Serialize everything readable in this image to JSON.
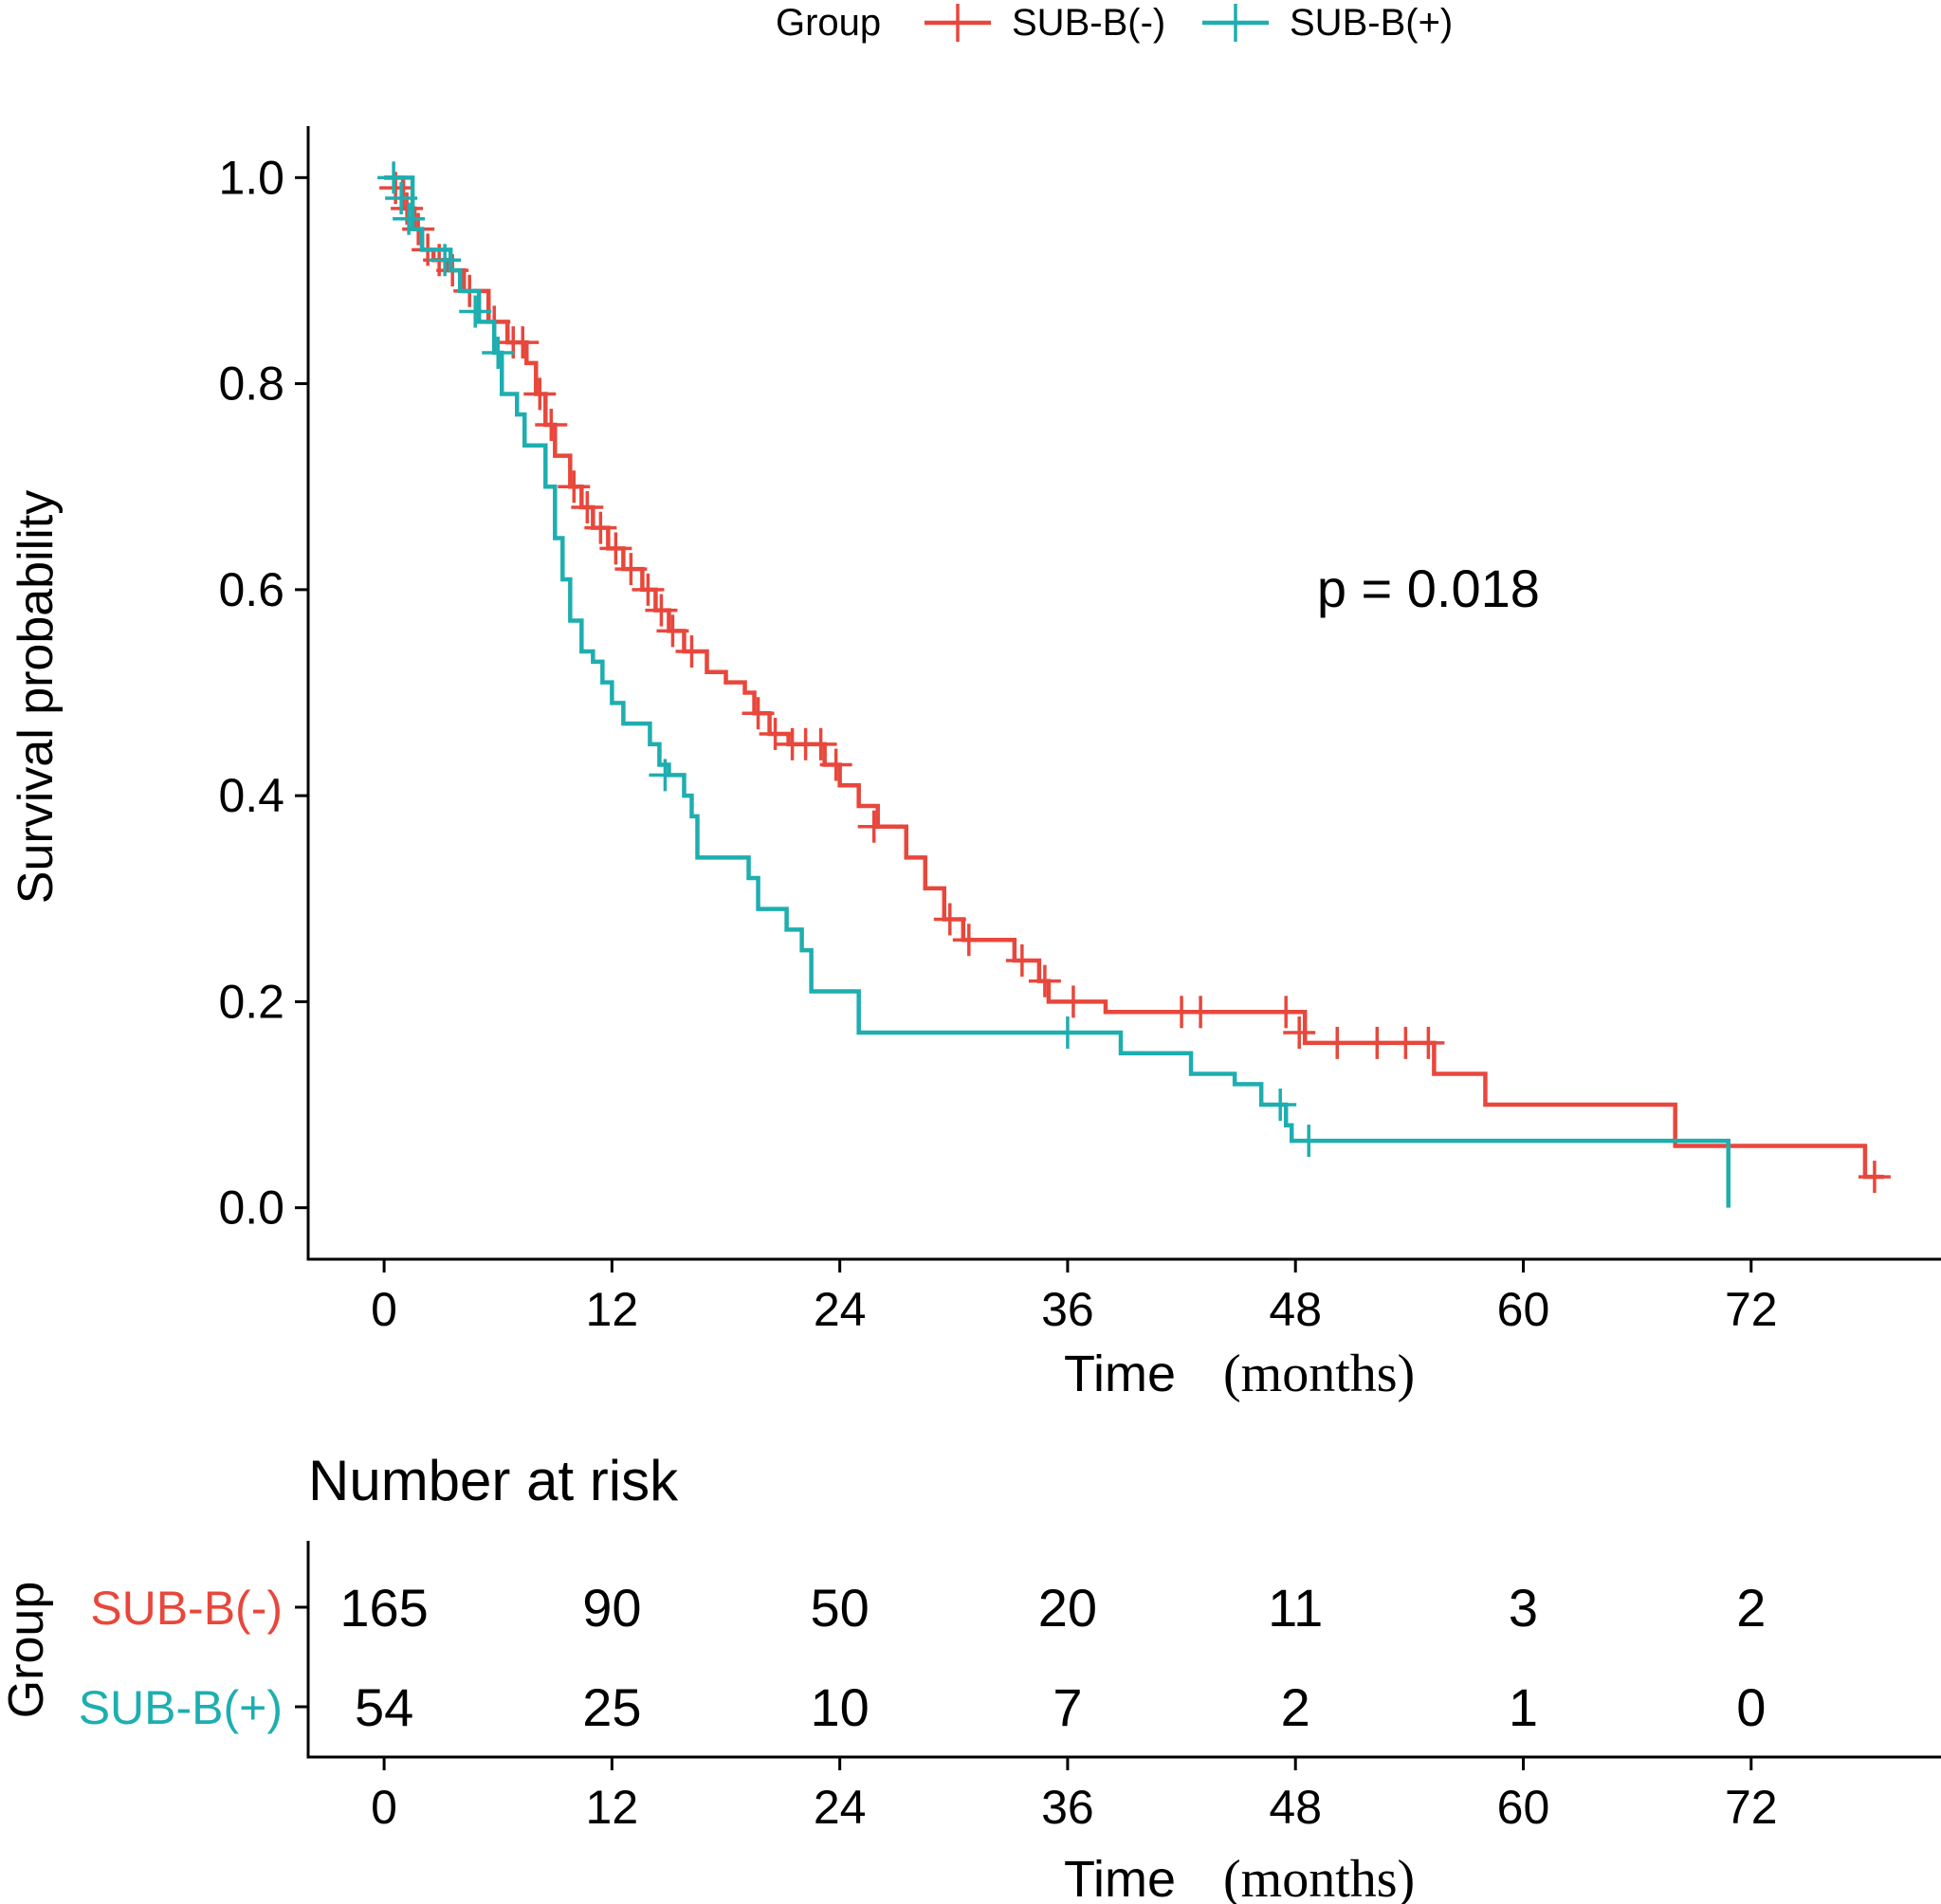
{
  "chart_data": {
    "type": "line",
    "subtype": "kaplan-meier",
    "legend": {
      "title": "Group",
      "position": "top",
      "entries": [
        {
          "name": "SUB-B(-)",
          "color": "#E8473C"
        },
        {
          "name": "SUB-B(+)",
          "color": "#1EAEB0"
        }
      ]
    },
    "xlabel_main": "Time",
    "xlabel_unit": "(months)",
    "ylabel": "Survival probability",
    "xlim": [
      -4,
      82
    ],
    "ylim": [
      -0.05,
      1.05
    ],
    "xticks": [
      0,
      12,
      24,
      36,
      48,
      60,
      72
    ],
    "xtick_labels": [
      "0",
      "12",
      "24",
      "36",
      "48",
      "60",
      "72"
    ],
    "yticks": [
      0.0,
      0.2,
      0.4,
      0.6,
      0.8,
      1.0
    ],
    "ytick_labels": [
      "0.0",
      "0.2",
      "0.4",
      "0.6",
      "0.8",
      "1.0"
    ],
    "annotation": "p = 0.018",
    "annotation_at": {
      "x": 55,
      "y": 0.6
    },
    "series": [
      {
        "name": "SUB-B(-)",
        "color": "#E8473C",
        "steps": [
          [
            0,
            1.0
          ],
          [
            1.0,
            0.97
          ],
          [
            1.6,
            0.95
          ],
          [
            2.0,
            0.93
          ],
          [
            2.6,
            0.92
          ],
          [
            3.3,
            0.91
          ],
          [
            4.2,
            0.89
          ],
          [
            5.5,
            0.86
          ],
          [
            6.5,
            0.84
          ],
          [
            7.5,
            0.82
          ],
          [
            8.0,
            0.79
          ],
          [
            8.5,
            0.76
          ],
          [
            9.0,
            0.73
          ],
          [
            9.8,
            0.7
          ],
          [
            10.4,
            0.68
          ],
          [
            11.0,
            0.66
          ],
          [
            11.8,
            0.64
          ],
          [
            12.6,
            0.62
          ],
          [
            13.6,
            0.6
          ],
          [
            14.3,
            0.58
          ],
          [
            15.0,
            0.56
          ],
          [
            15.8,
            0.54
          ],
          [
            17.0,
            0.52
          ],
          [
            18.0,
            0.51
          ],
          [
            19.0,
            0.5
          ],
          [
            19.5,
            0.48
          ],
          [
            20.3,
            0.46
          ],
          [
            21.3,
            0.45
          ],
          [
            23.2,
            0.43
          ],
          [
            24.0,
            0.41
          ],
          [
            25.0,
            0.39
          ],
          [
            26.0,
            0.37
          ],
          [
            27.5,
            0.34
          ],
          [
            28.5,
            0.31
          ],
          [
            29.5,
            0.28
          ],
          [
            30.5,
            0.26
          ],
          [
            33.2,
            0.24
          ],
          [
            34.5,
            0.22
          ],
          [
            35.0,
            0.2
          ],
          [
            38.0,
            0.19
          ],
          [
            48.5,
            0.16
          ],
          [
            55.3,
            0.13
          ],
          [
            58.0,
            0.1
          ],
          [
            68.0,
            0.06
          ],
          [
            78.0,
            0.03
          ]
        ],
        "end": 79,
        "censored": [
          [
            0.6,
            0.99
          ],
          [
            1.2,
            0.97
          ],
          [
            1.8,
            0.95
          ],
          [
            2.3,
            0.93
          ],
          [
            2.9,
            0.92
          ],
          [
            3.6,
            0.91
          ],
          [
            4.5,
            0.89
          ],
          [
            5.8,
            0.86
          ],
          [
            6.8,
            0.84
          ],
          [
            7.3,
            0.84
          ],
          [
            8.2,
            0.79
          ],
          [
            8.8,
            0.76
          ],
          [
            10.0,
            0.7
          ],
          [
            10.7,
            0.68
          ],
          [
            11.4,
            0.66
          ],
          [
            12.2,
            0.64
          ],
          [
            13.0,
            0.62
          ],
          [
            13.9,
            0.6
          ],
          [
            14.6,
            0.58
          ],
          [
            15.2,
            0.56
          ],
          [
            16.2,
            0.54
          ],
          [
            19.7,
            0.48
          ],
          [
            20.6,
            0.46
          ],
          [
            21.5,
            0.45
          ],
          [
            22.2,
            0.45
          ],
          [
            23.0,
            0.45
          ],
          [
            23.8,
            0.43
          ],
          [
            25.8,
            0.37
          ],
          [
            29.8,
            0.28
          ],
          [
            30.8,
            0.26
          ],
          [
            33.6,
            0.24
          ],
          [
            34.8,
            0.22
          ],
          [
            36.3,
            0.2
          ],
          [
            42.0,
            0.19
          ],
          [
            43.0,
            0.19
          ],
          [
            47.5,
            0.19
          ],
          [
            48.2,
            0.17
          ],
          [
            50.2,
            0.16
          ],
          [
            52.3,
            0.16
          ],
          [
            53.8,
            0.16
          ],
          [
            55.0,
            0.16
          ],
          [
            78.5,
            0.03
          ]
        ]
      },
      {
        "name": "SUB-B(+)",
        "color": "#1EAEB0",
        "steps": [
          [
            0,
            1.0
          ],
          [
            1.5,
            0.95
          ],
          [
            2.0,
            0.93
          ],
          [
            3.5,
            0.91
          ],
          [
            4.0,
            0.89
          ],
          [
            5.0,
            0.86
          ],
          [
            5.8,
            0.83
          ],
          [
            6.2,
            0.79
          ],
          [
            7.0,
            0.77
          ],
          [
            7.4,
            0.74
          ],
          [
            8.5,
            0.7
          ],
          [
            9.0,
            0.65
          ],
          [
            9.4,
            0.61
          ],
          [
            9.8,
            0.57
          ],
          [
            10.4,
            0.54
          ],
          [
            11.0,
            0.53
          ],
          [
            11.5,
            0.51
          ],
          [
            12.0,
            0.49
          ],
          [
            12.6,
            0.47
          ],
          [
            13.4,
            0.47
          ],
          [
            14.0,
            0.45
          ],
          [
            14.5,
            0.43
          ],
          [
            15.0,
            0.42
          ],
          [
            15.8,
            0.4
          ],
          [
            16.2,
            0.38
          ],
          [
            16.5,
            0.34
          ],
          [
            19.2,
            0.32
          ],
          [
            19.7,
            0.29
          ],
          [
            21.2,
            0.27
          ],
          [
            22.0,
            0.25
          ],
          [
            22.5,
            0.21
          ],
          [
            25.0,
            0.17
          ],
          [
            38.8,
            0.15
          ],
          [
            42.5,
            0.13
          ],
          [
            44.8,
            0.12
          ],
          [
            46.2,
            0.1
          ],
          [
            47.5,
            0.08
          ],
          [
            47.8,
            0.065
          ],
          [
            70.8,
            0.0
          ]
        ],
        "end": 70.8,
        "censored": [
          [
            0.5,
            1.0
          ],
          [
            0.9,
            0.98
          ],
          [
            1.3,
            0.96
          ],
          [
            3.2,
            0.92
          ],
          [
            4.8,
            0.87
          ],
          [
            6.0,
            0.83
          ],
          [
            14.8,
            0.42
          ],
          [
            36.0,
            0.17
          ],
          [
            47.2,
            0.1
          ],
          [
            48.7,
            0.065
          ]
        ]
      }
    ],
    "risk_table": {
      "title": "Number at risk",
      "row_axis_label": "Group",
      "times": [
        0,
        12,
        24,
        36,
        48,
        60,
        72
      ],
      "rows": [
        {
          "name": "SUB-B(-)",
          "color": "#E8473C",
          "values": [
            "165",
            "90",
            "50",
            "20",
            "11",
            "3",
            "2"
          ]
        },
        {
          "name": "SUB-B(+)",
          "color": "#1EAEB0",
          "values": [
            "54",
            "25",
            "10",
            "7",
            "2",
            "1",
            "0"
          ]
        }
      ],
      "xlabel_main": "Time",
      "xlabel_unit": "(months)"
    }
  }
}
